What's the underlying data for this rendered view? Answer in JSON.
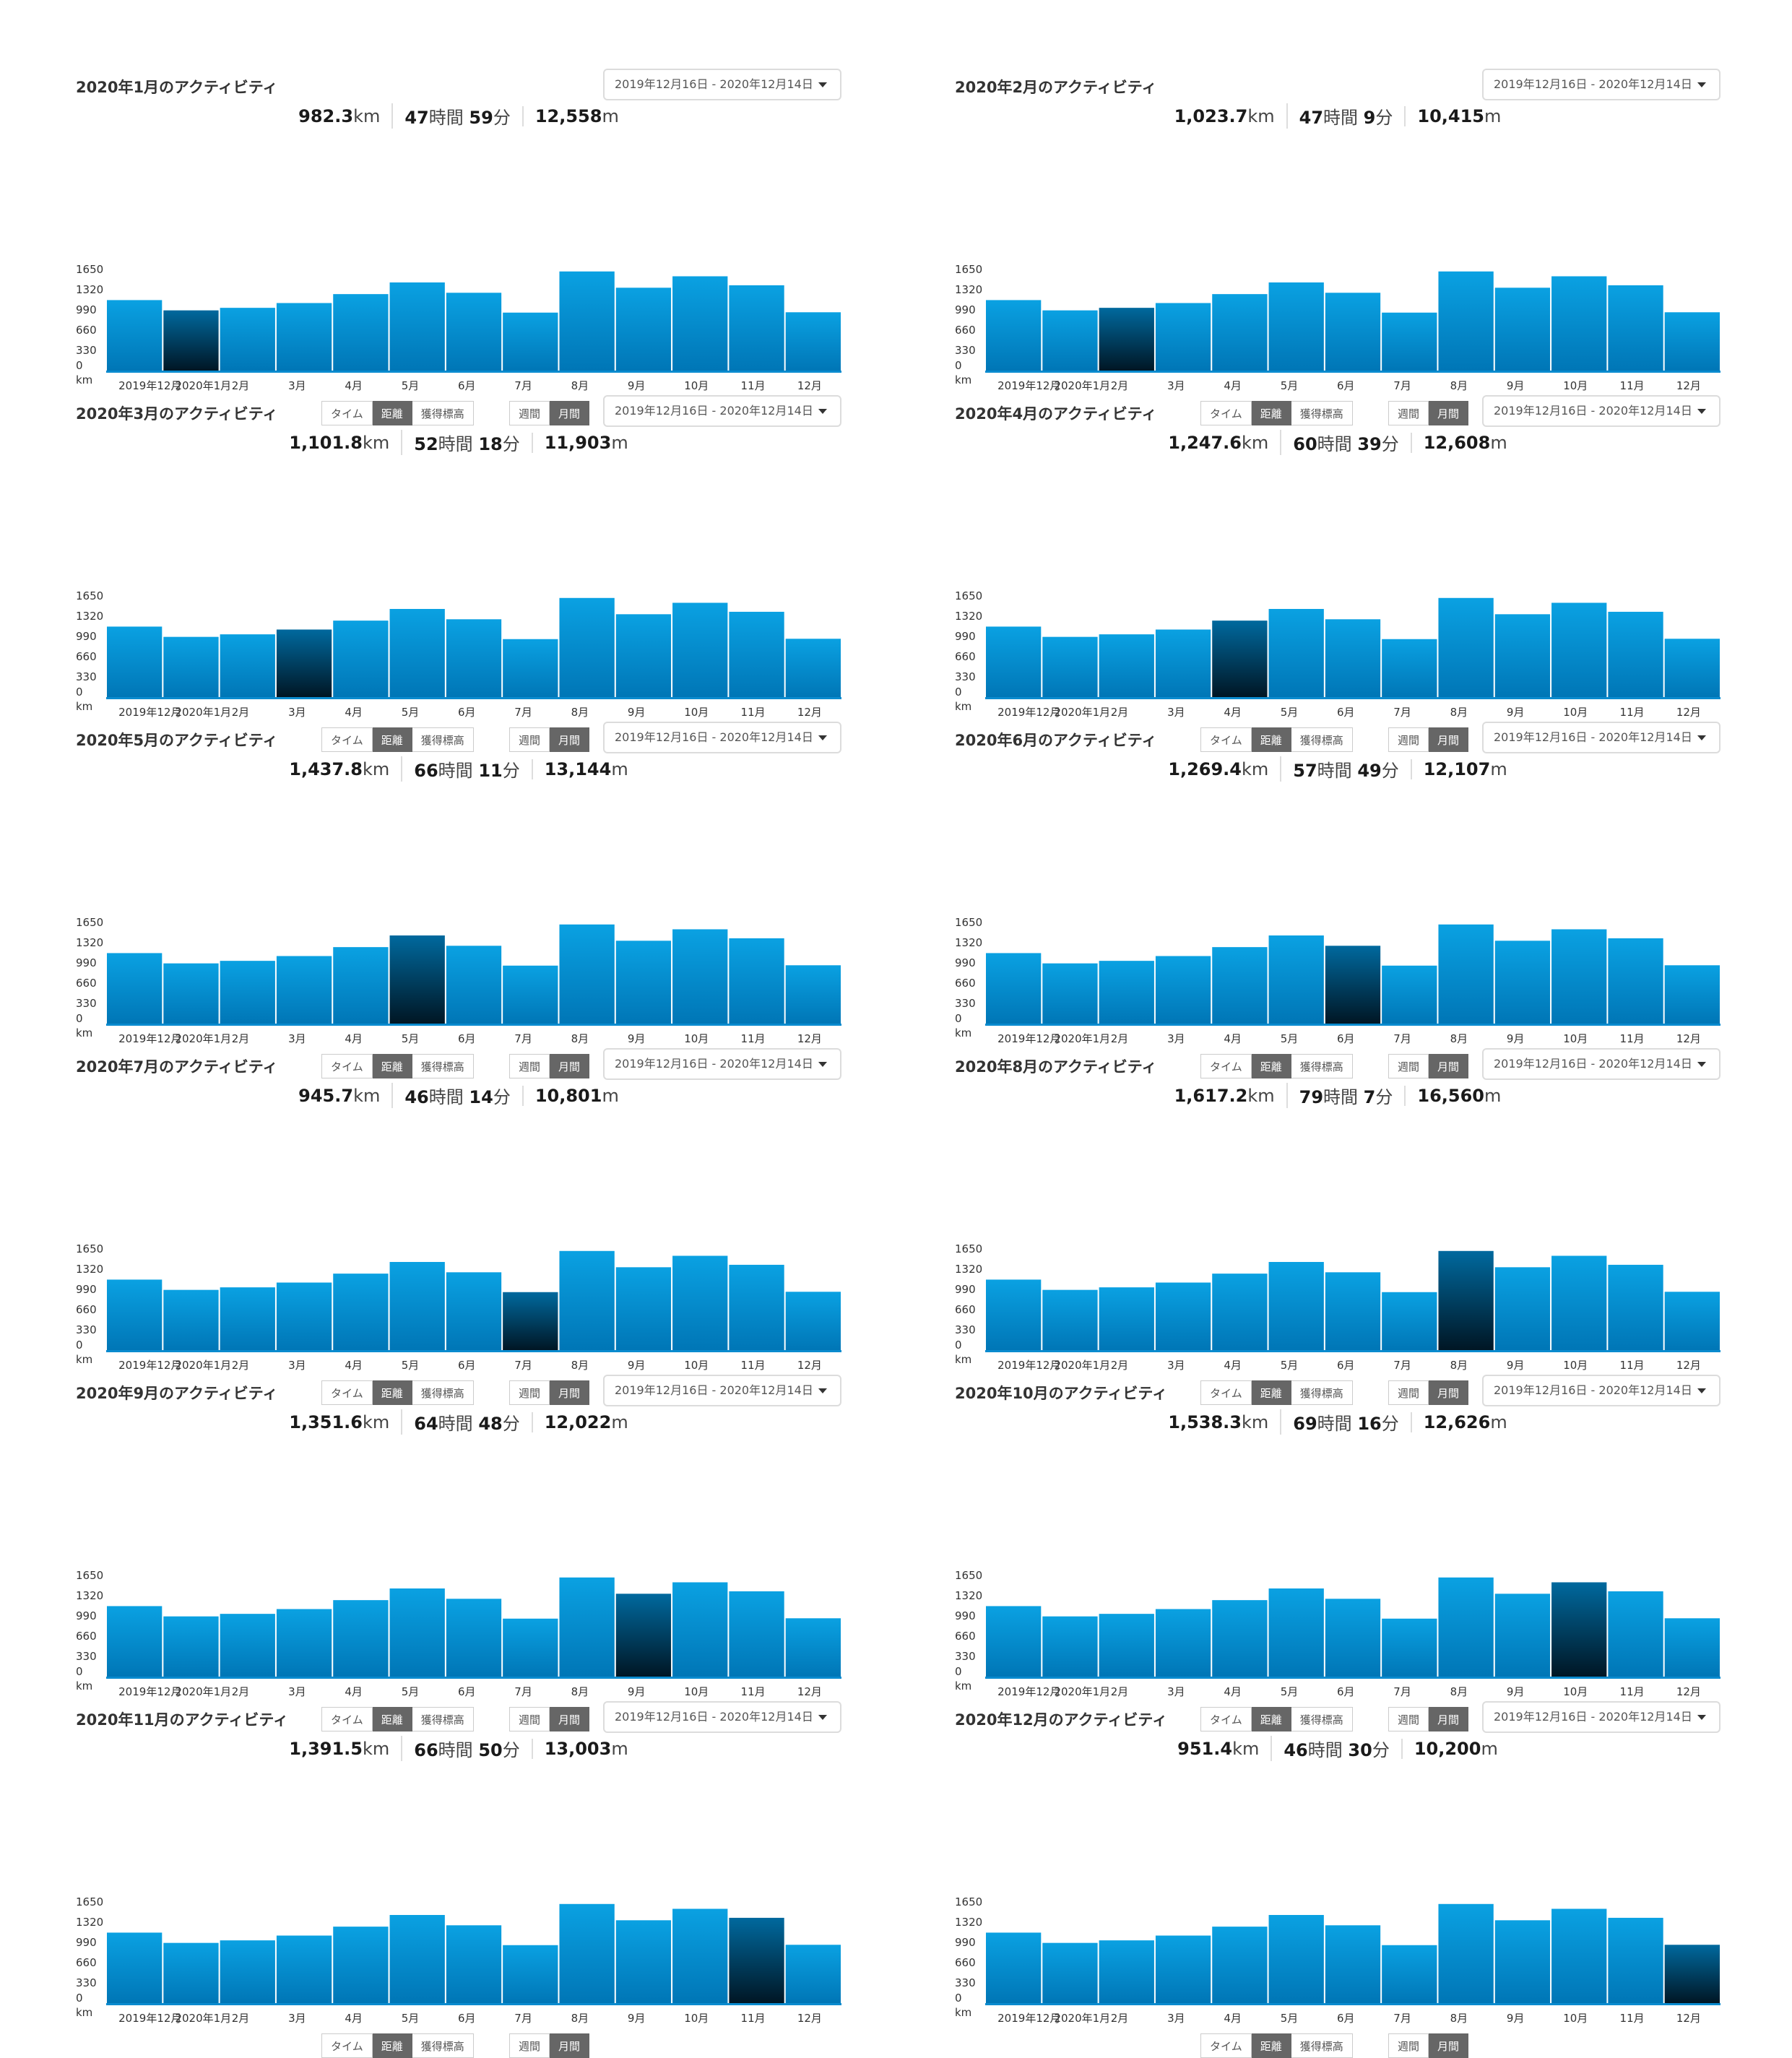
{
  "colors": {
    "bar_top": "#0aa1e2",
    "bar_bottom": "#0076b6",
    "selected_top": "#00699e",
    "selected_bottom": "#001624",
    "baseline": "#0a8bcf"
  },
  "date_range_label": "2019年12月16日 - 2020年12月14日",
  "metric_toggle": {
    "time": "タイム",
    "distance": "距離",
    "elevation": "獲得標高",
    "active": "distance"
  },
  "period_toggle": {
    "week": "週間",
    "month": "月間",
    "active": "month"
  },
  "stat_units": {
    "distance": "km",
    "hours": "時間",
    "minutes": "分",
    "elevation": "m"
  },
  "chart_data": {
    "type": "bar",
    "categories": [
      "2019年12月",
      "2020年1月",
      "2月",
      "3月",
      "4月",
      "5月",
      "6月",
      "7月",
      "8月",
      "9月",
      "10月",
      "11月",
      "12月"
    ],
    "values": [
      1150,
      982.3,
      1023.7,
      1101.8,
      1247.6,
      1437.8,
      1269.4,
      945.7,
      1617.2,
      1351.6,
      1538.3,
      1391.5,
      951.4
    ],
    "yticks": [
      "1650",
      "1320",
      "990",
      "660",
      "330",
      "0"
    ],
    "ylabel": "km",
    "ylim": [
      0,
      1650
    ]
  },
  "panels": [
    {
      "title": "2020年1月のアクティビティ",
      "selected_index": 1,
      "stats": {
        "distance": "982.3",
        "hours": "47",
        "minutes": "59",
        "elevation": "12,558"
      }
    },
    {
      "title": "2020年2月のアクティビティ",
      "selected_index": 2,
      "stats": {
        "distance": "1,023.7",
        "hours": "47",
        "minutes": "9",
        "elevation": "10,415"
      }
    },
    {
      "title": "2020年3月のアクティビティ",
      "selected_index": 3,
      "stats": {
        "distance": "1,101.8",
        "hours": "52",
        "minutes": "18",
        "elevation": "11,903"
      }
    },
    {
      "title": "2020年4月のアクティビティ",
      "selected_index": 4,
      "stats": {
        "distance": "1,247.6",
        "hours": "60",
        "minutes": "39",
        "elevation": "12,608"
      }
    },
    {
      "title": "2020年5月のアクティビティ",
      "selected_index": 5,
      "stats": {
        "distance": "1,437.8",
        "hours": "66",
        "minutes": "11",
        "elevation": "13,144"
      }
    },
    {
      "title": "2020年6月のアクティビティ",
      "selected_index": 6,
      "stats": {
        "distance": "1,269.4",
        "hours": "57",
        "minutes": "49",
        "elevation": "12,107"
      }
    },
    {
      "title": "2020年7月のアクティビティ",
      "selected_index": 7,
      "stats": {
        "distance": "945.7",
        "hours": "46",
        "minutes": "14",
        "elevation": "10,801"
      }
    },
    {
      "title": "2020年8月のアクティビティ",
      "selected_index": 8,
      "stats": {
        "distance": "1,617.2",
        "hours": "79",
        "minutes": "7",
        "elevation": "16,560"
      }
    },
    {
      "title": "2020年9月のアクティビティ",
      "selected_index": 9,
      "stats": {
        "distance": "1,351.6",
        "hours": "64",
        "minutes": "48",
        "elevation": "12,022"
      }
    },
    {
      "title": "2020年10月のアクティビティ",
      "selected_index": 10,
      "stats": {
        "distance": "1,538.3",
        "hours": "69",
        "minutes": "16",
        "elevation": "12,626"
      }
    },
    {
      "title": "2020年11月のアクティビティ",
      "selected_index": 11,
      "stats": {
        "distance": "1,391.5",
        "hours": "66",
        "minutes": "50",
        "elevation": "13,003"
      }
    },
    {
      "title": "2020年12月のアクティビティ",
      "selected_index": 12,
      "stats": {
        "distance": "951.4",
        "hours": "46",
        "minutes": "30",
        "elevation": "10,200"
      }
    }
  ]
}
